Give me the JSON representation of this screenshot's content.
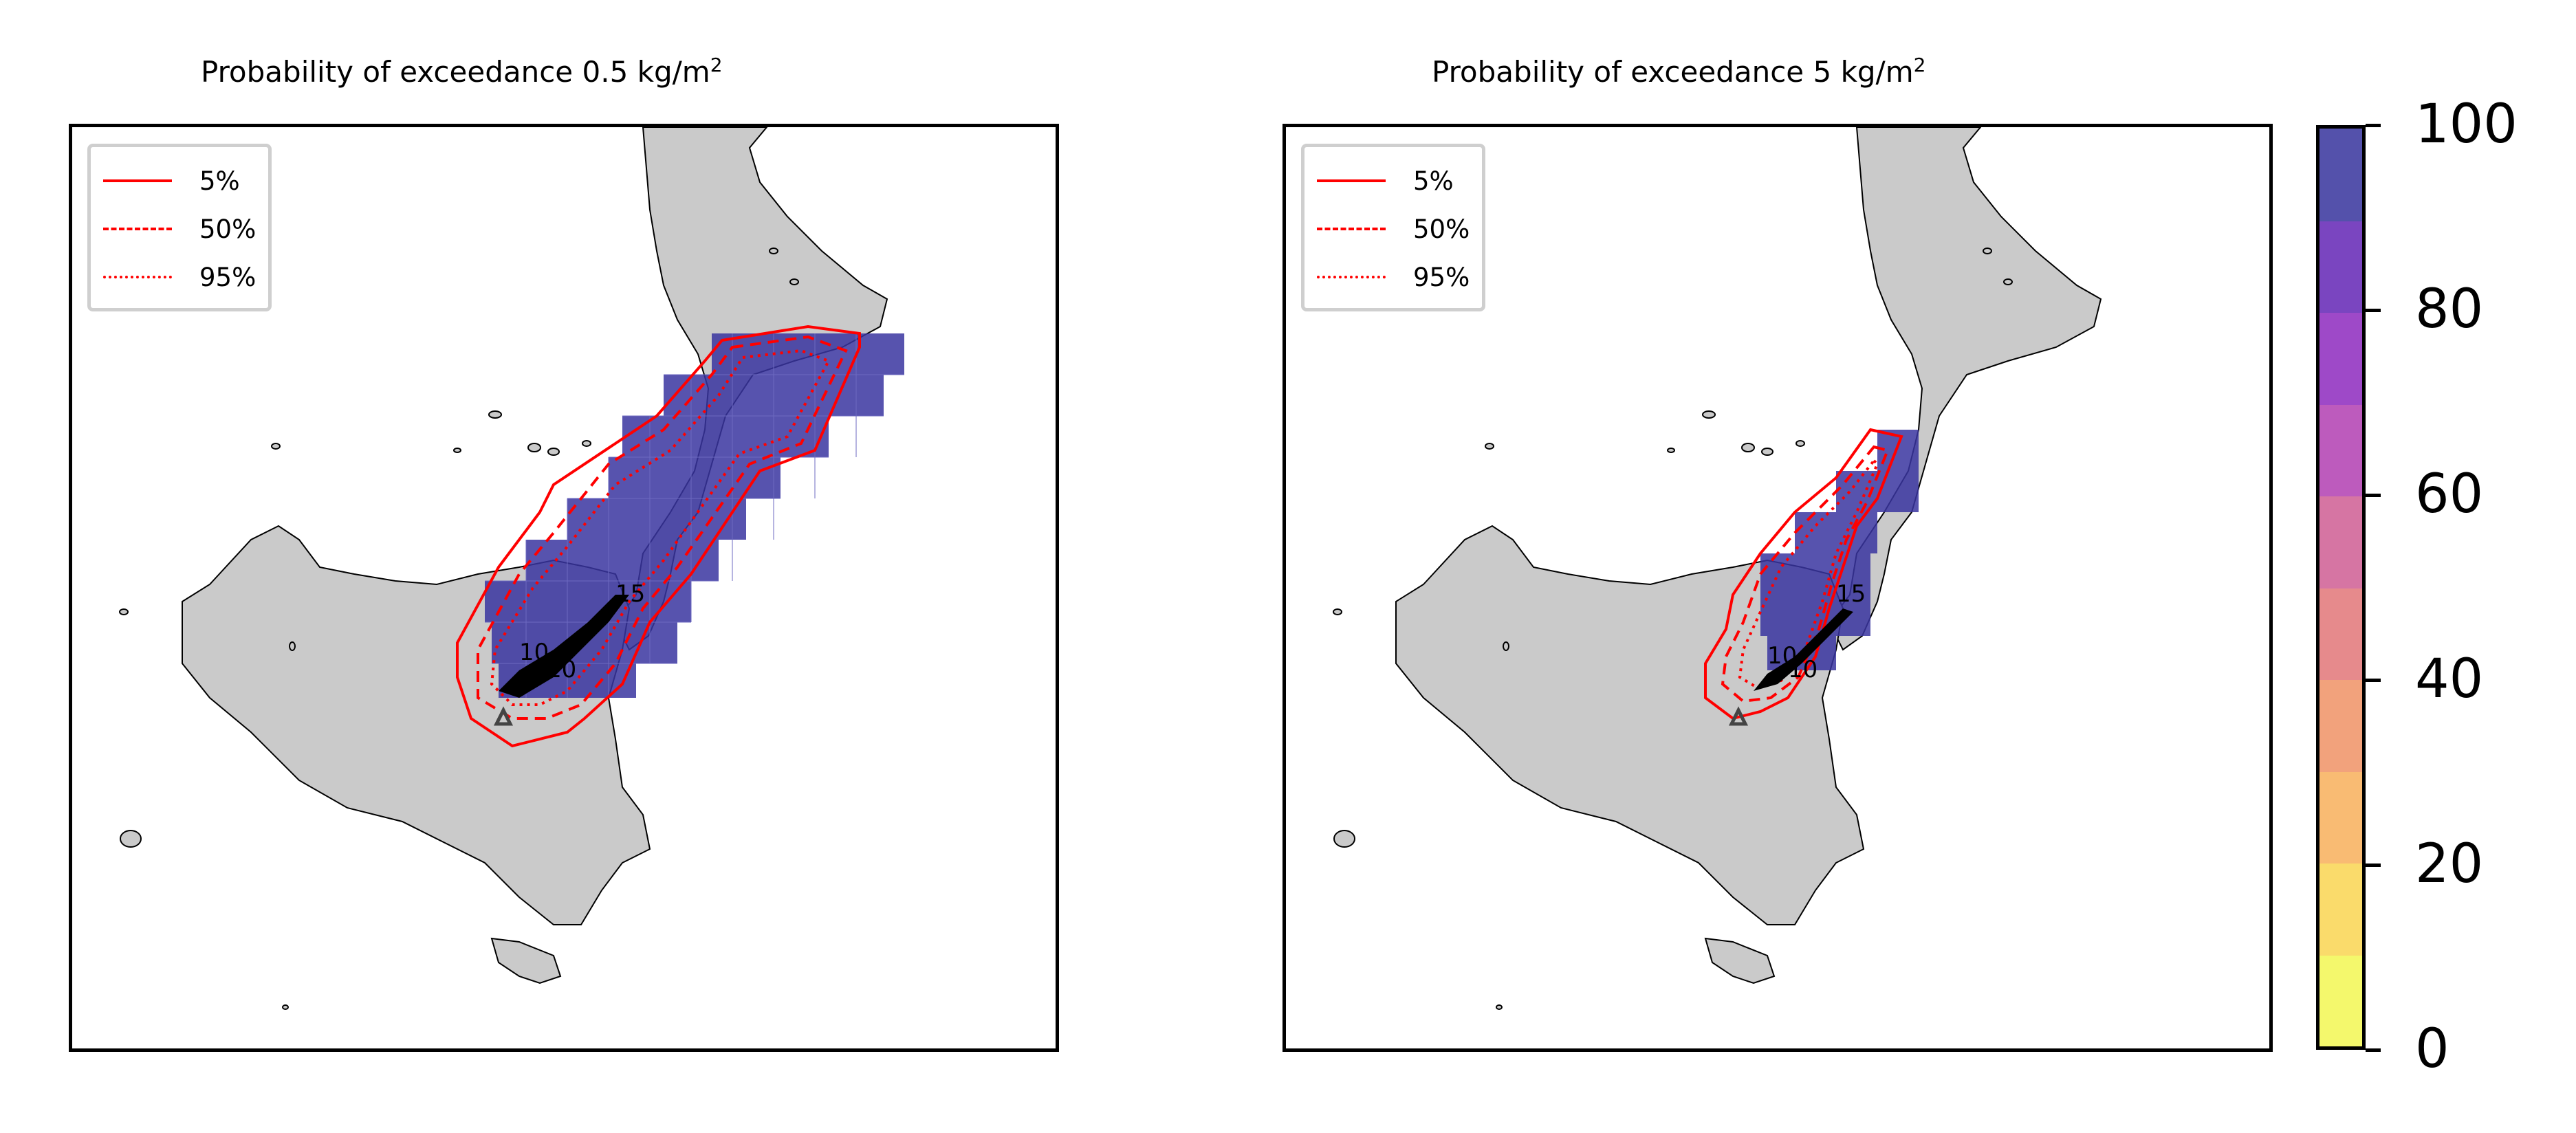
{
  "panels": [
    {
      "title_text": "Probability of exceedance 0.5 kg/m",
      "title_sup": "2",
      "legend": [
        {
          "label": "5%",
          "style": "solid"
        },
        {
          "label": "50%",
          "style": "dashed"
        },
        {
          "label": "95%",
          "style": "dotted"
        }
      ],
      "labels": [
        "10",
        "15",
        "10"
      ]
    },
    {
      "title_text": "Probability of exceedance 5 kg/m",
      "title_sup": "2",
      "legend": [
        {
          "label": "5%",
          "style": "solid"
        },
        {
          "label": "50%",
          "style": "dashed"
        },
        {
          "label": "95%",
          "style": "dotted"
        }
      ],
      "labels": [
        "15",
        "10",
        "10"
      ]
    }
  ],
  "colorbar": {
    "ticks": [
      "0",
      "20",
      "40",
      "60",
      "80",
      "100"
    ],
    "colors": [
      "#f4f86c",
      "#fadb6b",
      "#f9bb73",
      "#f2a27c",
      "#e68a8c",
      "#d675a3",
      "#bd5bbd",
      "#9e49c8",
      "#7a45c0",
      "#5451ab"
    ]
  },
  "colors": {
    "land": "#cacaca",
    "coast": "#000000",
    "contour": "#ff0000",
    "probability_high": "#3a35a0"
  }
}
